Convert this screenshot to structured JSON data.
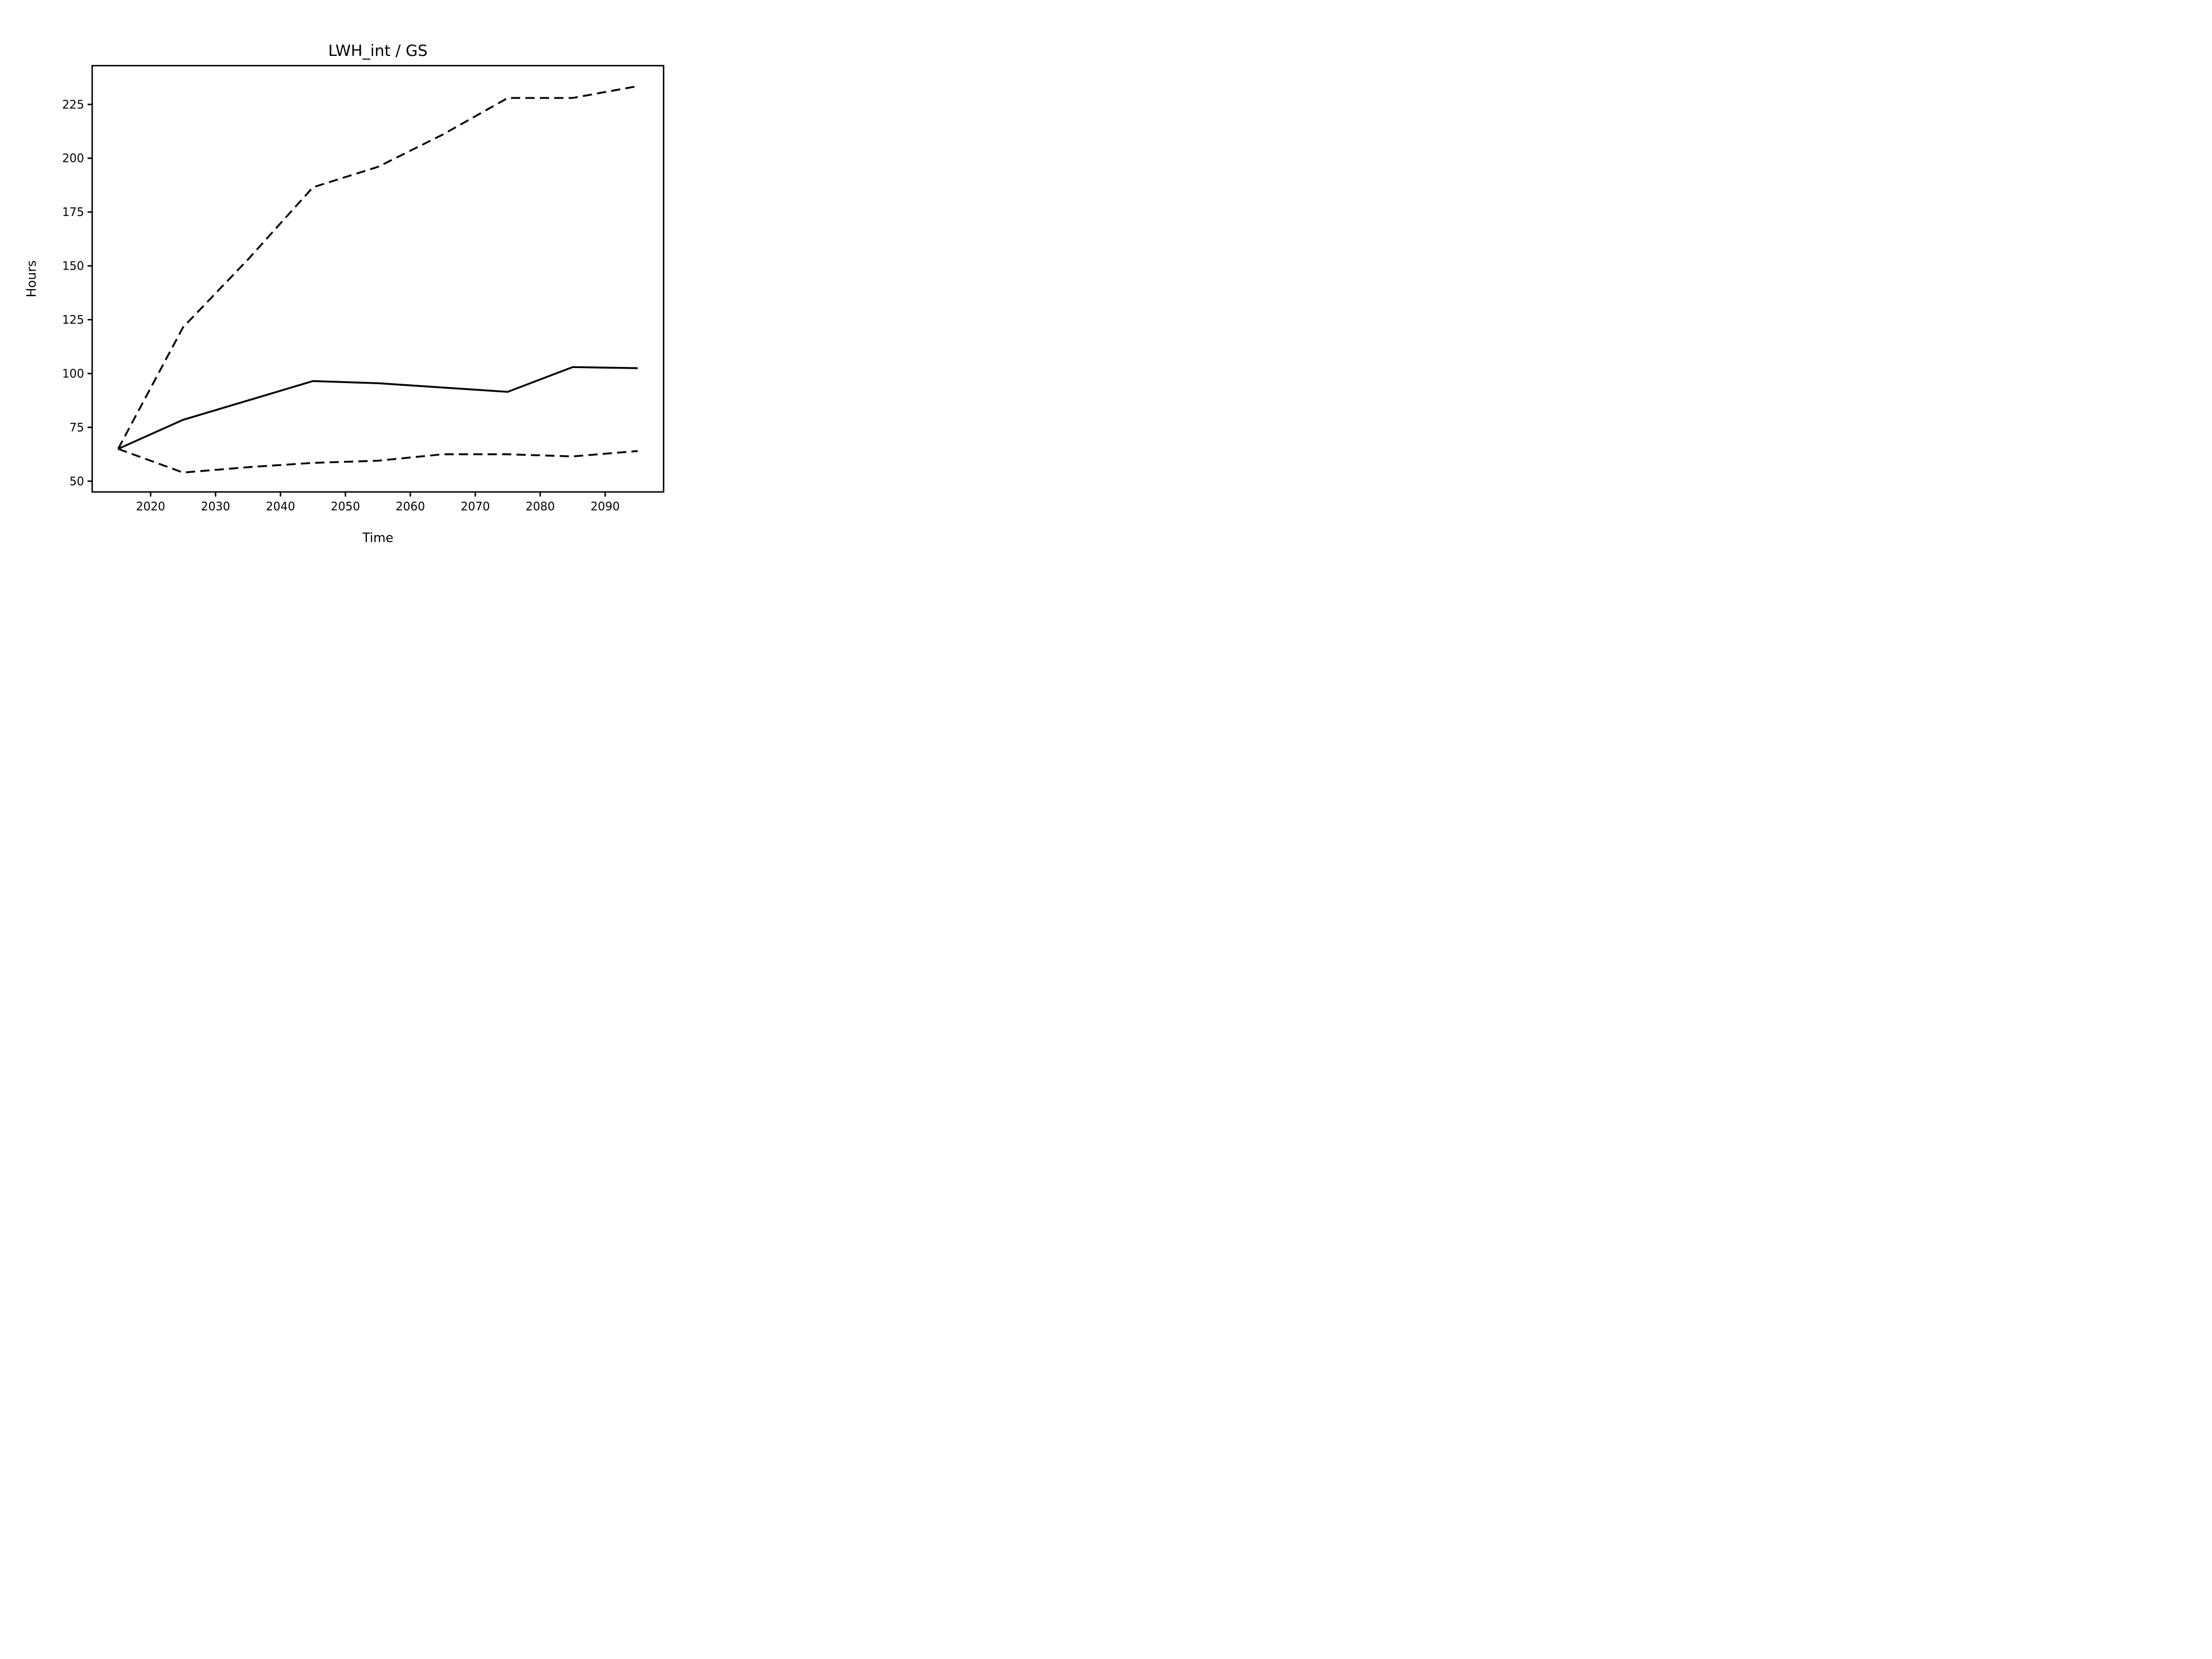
{
  "chart_data": {
    "type": "line",
    "title": "LWH_int / GS",
    "xlabel": "Time",
    "ylabel": "Hours",
    "x": [
      2015,
      2025,
      2035,
      2045,
      2055,
      2065,
      2075,
      2085,
      2095
    ],
    "series": [
      {
        "name": "upper-bound-dashed",
        "style": "dashed",
        "color": "#000000",
        "values": [
          65,
          121.5,
          153,
          186.5,
          196,
          211,
          228,
          228,
          233.5
        ]
      },
      {
        "name": "central-solid",
        "style": "solid",
        "color": "#000000",
        "values": [
          65,
          78.5,
          87.5,
          96.5,
          95.5,
          93.5,
          91.5,
          103,
          102.5
        ]
      },
      {
        "name": "lower-bound-dashed",
        "style": "dashed",
        "color": "#000000",
        "values": [
          65,
          54,
          56.5,
          58.5,
          59.5,
          62.5,
          62.5,
          61.5,
          64
        ]
      }
    ],
    "xlim": [
      2011,
      2099
    ],
    "ylim": [
      45,
      243
    ],
    "xticks": [
      2020,
      2030,
      2040,
      2050,
      2060,
      2070,
      2080,
      2090
    ],
    "yticks": [
      50,
      75,
      100,
      125,
      150,
      175,
      200,
      225
    ],
    "grid": false,
    "legend_position": "none",
    "background": "#ffffff",
    "axis_color": "#000000"
  }
}
